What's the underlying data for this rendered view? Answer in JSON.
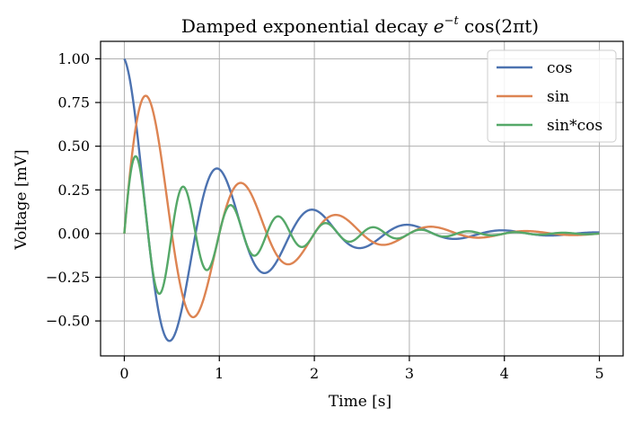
{
  "chart_data": {
    "type": "line",
    "title": "Damped exponential decay e^{-t} cos(2πt)",
    "title_parts": {
      "prefix": "Damped exponential decay ",
      "base": "e",
      "exponent": "−t",
      "func": " cos(2πt)"
    },
    "xlabel": "Time [s]",
    "ylabel": "Voltage [mV]",
    "xlim": [
      -0.25,
      5.25
    ],
    "ylim": [
      -0.7,
      1.1
    ],
    "xticks": [
      0,
      1,
      2,
      3,
      4,
      5
    ],
    "xtick_labels": [
      "0",
      "1",
      "2",
      "3",
      "4",
      "5"
    ],
    "yticks": [
      -0.5,
      -0.25,
      0.0,
      0.25,
      0.5,
      0.75,
      1.0
    ],
    "ytick_labels": [
      "−0.50",
      "−0.25",
      "0.00",
      "0.25",
      "0.50",
      "0.75",
      "1.00"
    ],
    "grid": true,
    "legend_position": "top-right",
    "t_range": [
      0,
      5
    ],
    "series": [
      {
        "name": "cos",
        "color": "#4c72b0",
        "points": [
          [
            0,
            1.0
          ],
          [
            0.5,
            -0.61
          ],
          [
            1.0,
            0.37
          ],
          [
            1.5,
            -0.22
          ],
          [
            2.0,
            0.14
          ],
          [
            2.5,
            -0.08
          ],
          [
            3.0,
            0.05
          ],
          [
            3.5,
            -0.03
          ],
          [
            4.0,
            0.02
          ],
          [
            5.0,
            0.01
          ]
        ]
      },
      {
        "name": "sin",
        "color": "#dd8452",
        "points": [
          [
            0,
            0.0
          ],
          [
            0.25,
            0.78
          ],
          [
            0.75,
            -0.47
          ],
          [
            1.25,
            0.29
          ],
          [
            1.75,
            -0.17
          ],
          [
            2.25,
            0.11
          ],
          [
            2.75,
            -0.06
          ],
          [
            3.25,
            0.04
          ],
          [
            3.75,
            -0.02
          ],
          [
            5.0,
            0.0
          ]
        ]
      },
      {
        "name": "sin*cos",
        "color": "#55a868",
        "points": [
          [
            0,
            0.0
          ],
          [
            0.125,
            0.44
          ],
          [
            0.375,
            -0.34
          ],
          [
            0.625,
            0.27
          ],
          [
            0.875,
            -0.21
          ],
          [
            1.125,
            0.16
          ],
          [
            1.375,
            -0.13
          ],
          [
            1.625,
            0.1
          ],
          [
            1.875,
            -0.08
          ],
          [
            5.0,
            0.0
          ]
        ]
      }
    ]
  }
}
